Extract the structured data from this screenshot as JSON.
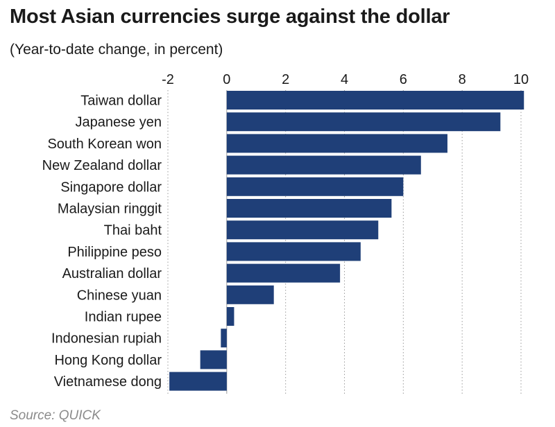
{
  "header": {
    "title": "Most Asian currencies surge against the dollar",
    "subtitle": "(Year-to-date change, in percent)"
  },
  "footer": {
    "source": "Source: QUICK"
  },
  "colors": {
    "bar": "#1f3f78",
    "grid": "#9a9a9a",
    "text": "#1a1a1a",
    "source": "#8a8a8a"
  },
  "chart_data": {
    "type": "bar",
    "orientation": "horizontal",
    "title": "Most Asian currencies surge against the dollar",
    "subtitle": "(Year-to-date change, in percent)",
    "categories": [
      "Taiwan dollar",
      "Japanese yen",
      "South Korean won",
      "New Zealand dollar",
      "Singapore dollar",
      "Malaysian ringgit",
      "Thai baht",
      "Philippine peso",
      "Australian dollar",
      "Chinese yuan",
      "Indian rupee",
      "Indonesian rupiah",
      "Hong Kong dollar",
      "Vietnamese dong"
    ],
    "values": [
      10.1,
      9.3,
      7.5,
      6.6,
      6.0,
      5.6,
      5.15,
      4.55,
      3.85,
      1.6,
      0.25,
      -0.2,
      -0.9,
      -1.95
    ],
    "xlim": [
      -2,
      10
    ],
    "xticks": [
      -2,
      0,
      2,
      4,
      6,
      8,
      10
    ],
    "xtick_labels": [
      "-2",
      "0",
      "2",
      "4",
      "6",
      "8",
      "10"
    ],
    "xaxis_position": "top",
    "grid": "vertical dotted"
  }
}
